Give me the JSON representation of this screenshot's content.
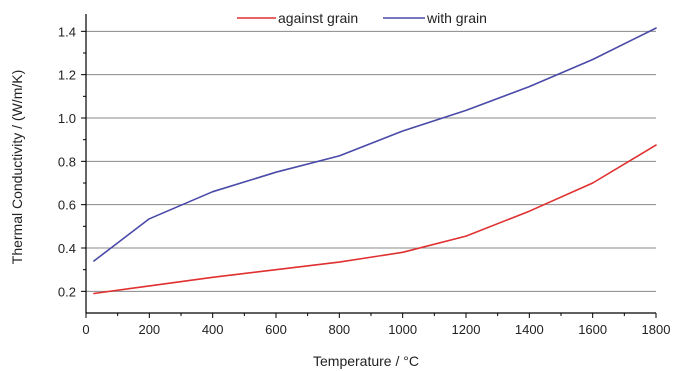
{
  "chart_data": {
    "type": "line",
    "xlabel": "Temperature / °C",
    "ylabel": "Thermal Conductivity / (W/m/K)",
    "xlim": [
      0,
      1800
    ],
    "ylim": [
      0.1,
      1.48
    ],
    "xticks": [
      0,
      200,
      400,
      600,
      800,
      1000,
      1200,
      1400,
      1600,
      1800
    ],
    "yticks": [
      0.2,
      0.4,
      0.6,
      0.8,
      1.0,
      1.2,
      1.4
    ],
    "xtick_labels": [
      "0",
      "200",
      "400",
      "600",
      "800",
      "1000",
      "1200",
      "1400",
      "1600",
      "1800"
    ],
    "ytick_labels": [
      "0.2",
      "0.4",
      "0.6",
      "0.8",
      "1.0",
      "1.2",
      "1.4"
    ],
    "grid": "horizontal",
    "legend_position": "top-center",
    "series": [
      {
        "name": "against grain",
        "color": "#e03030",
        "x": [
          25,
          200,
          400,
          600,
          800,
          1000,
          1200,
          1400,
          1600,
          1800
        ],
        "y": [
          0.19,
          0.225,
          0.265,
          0.3,
          0.335,
          0.38,
          0.455,
          0.57,
          0.7,
          0.875
        ]
      },
      {
        "name": "with grain",
        "color": "#4a4aa8",
        "x": [
          25,
          200,
          400,
          600,
          800,
          1000,
          1200,
          1400,
          1600,
          1800
        ],
        "y": [
          0.34,
          0.535,
          0.66,
          0.75,
          0.825,
          0.94,
          1.035,
          1.145,
          1.27,
          1.415
        ]
      }
    ]
  }
}
